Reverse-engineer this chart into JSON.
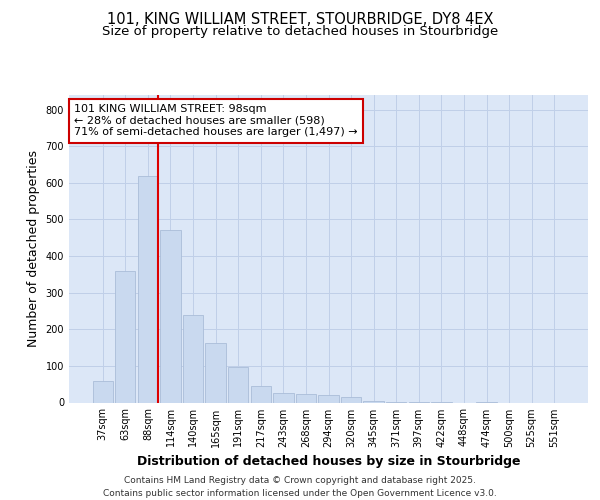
{
  "title_line1": "101, KING WILLIAM STREET, STOURBRIDGE, DY8 4EX",
  "title_line2": "Size of property relative to detached houses in Stourbridge",
  "xlabel": "Distribution of detached houses by size in Stourbridge",
  "ylabel": "Number of detached properties",
  "categories": [
    "37sqm",
    "63sqm",
    "88sqm",
    "114sqm",
    "140sqm",
    "165sqm",
    "191sqm",
    "217sqm",
    "243sqm",
    "268sqm",
    "294sqm",
    "320sqm",
    "345sqm",
    "371sqm",
    "397sqm",
    "422sqm",
    "448sqm",
    "474sqm",
    "500sqm",
    "525sqm",
    "551sqm"
  ],
  "values": [
    60,
    360,
    620,
    472,
    238,
    163,
    96,
    45,
    25,
    22,
    20,
    15,
    5,
    2,
    1,
    1,
    0,
    1,
    0,
    0,
    0
  ],
  "bar_color": "#c9d9ef",
  "bar_edge_color": "#aabdd8",
  "annotation_text": "101 KING WILLIAM STREET: 98sqm\n← 28% of detached houses are smaller (598)\n71% of semi-detached houses are larger (1,497) →",
  "annotation_box_facecolor": "#ffffff",
  "annotation_box_edgecolor": "#cc0000",
  "red_line_color": "#dd0000",
  "grid_color": "#c0cfe8",
  "plot_bg_color": "#dce7f7",
  "fig_bg_color": "#ffffff",
  "ylim": [
    0,
    840
  ],
  "yticks": [
    0,
    100,
    200,
    300,
    400,
    500,
    600,
    700,
    800
  ],
  "title_fontsize": 10.5,
  "subtitle_fontsize": 9.5,
  "axis_label_fontsize": 9,
  "tick_fontsize": 7,
  "annot_fontsize": 8,
  "footer_fontsize": 6.5,
  "footer_text": "Contains HM Land Registry data © Crown copyright and database right 2025.\nContains public sector information licensed under the Open Government Licence v3.0."
}
